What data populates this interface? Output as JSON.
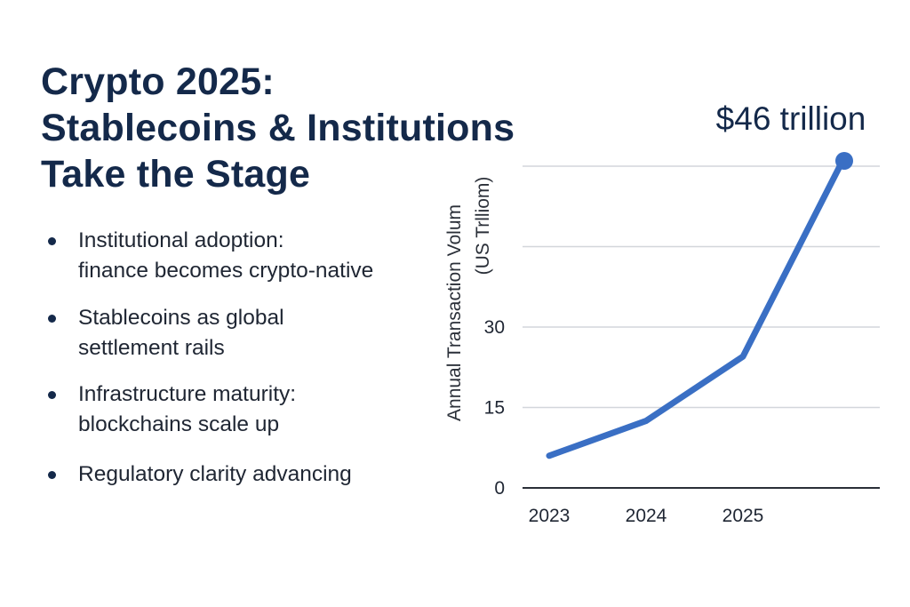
{
  "title": {
    "line1": "Crypto 2025:",
    "line2": "Stablecoins & Institutions",
    "line3": "Take the Stage"
  },
  "bullets": [
    {
      "line1": "Institutional adoption:",
      "line2": "finance becomes crypto-native"
    },
    {
      "line1": "Stablecoins as global",
      "line2": "settlement rails"
    },
    {
      "line1": "Infrastructure maturity:",
      "line2": "blockchains scale up"
    },
    {
      "line1": "Regulatory clarity advancing",
      "line2": ""
    }
  ],
  "colors": {
    "title": "#14294a",
    "line": "#3a6fc4",
    "grid": "#d3d6db",
    "axis": "#2a2f38"
  },
  "chart_data": {
    "type": "line",
    "ylabel_line1": "Annual Transaction Volum",
    "ylabel_line2": "(US Trlliom)",
    "x_tick_labels": [
      "2023",
      "2024",
      "2025"
    ],
    "y_tick_labels": [
      "0",
      "15",
      "30"
    ],
    "ylim": [
      0,
      60
    ],
    "grid": true,
    "series": [
      {
        "points": [
          {
            "x": 2023,
            "y": 6
          },
          {
            "x": 2024,
            "y": 12.5
          },
          {
            "x": 2025,
            "y": 24.5
          },
          {
            "x": 2026,
            "y": 60
          }
        ]
      }
    ],
    "callout": "$46 trillion"
  }
}
